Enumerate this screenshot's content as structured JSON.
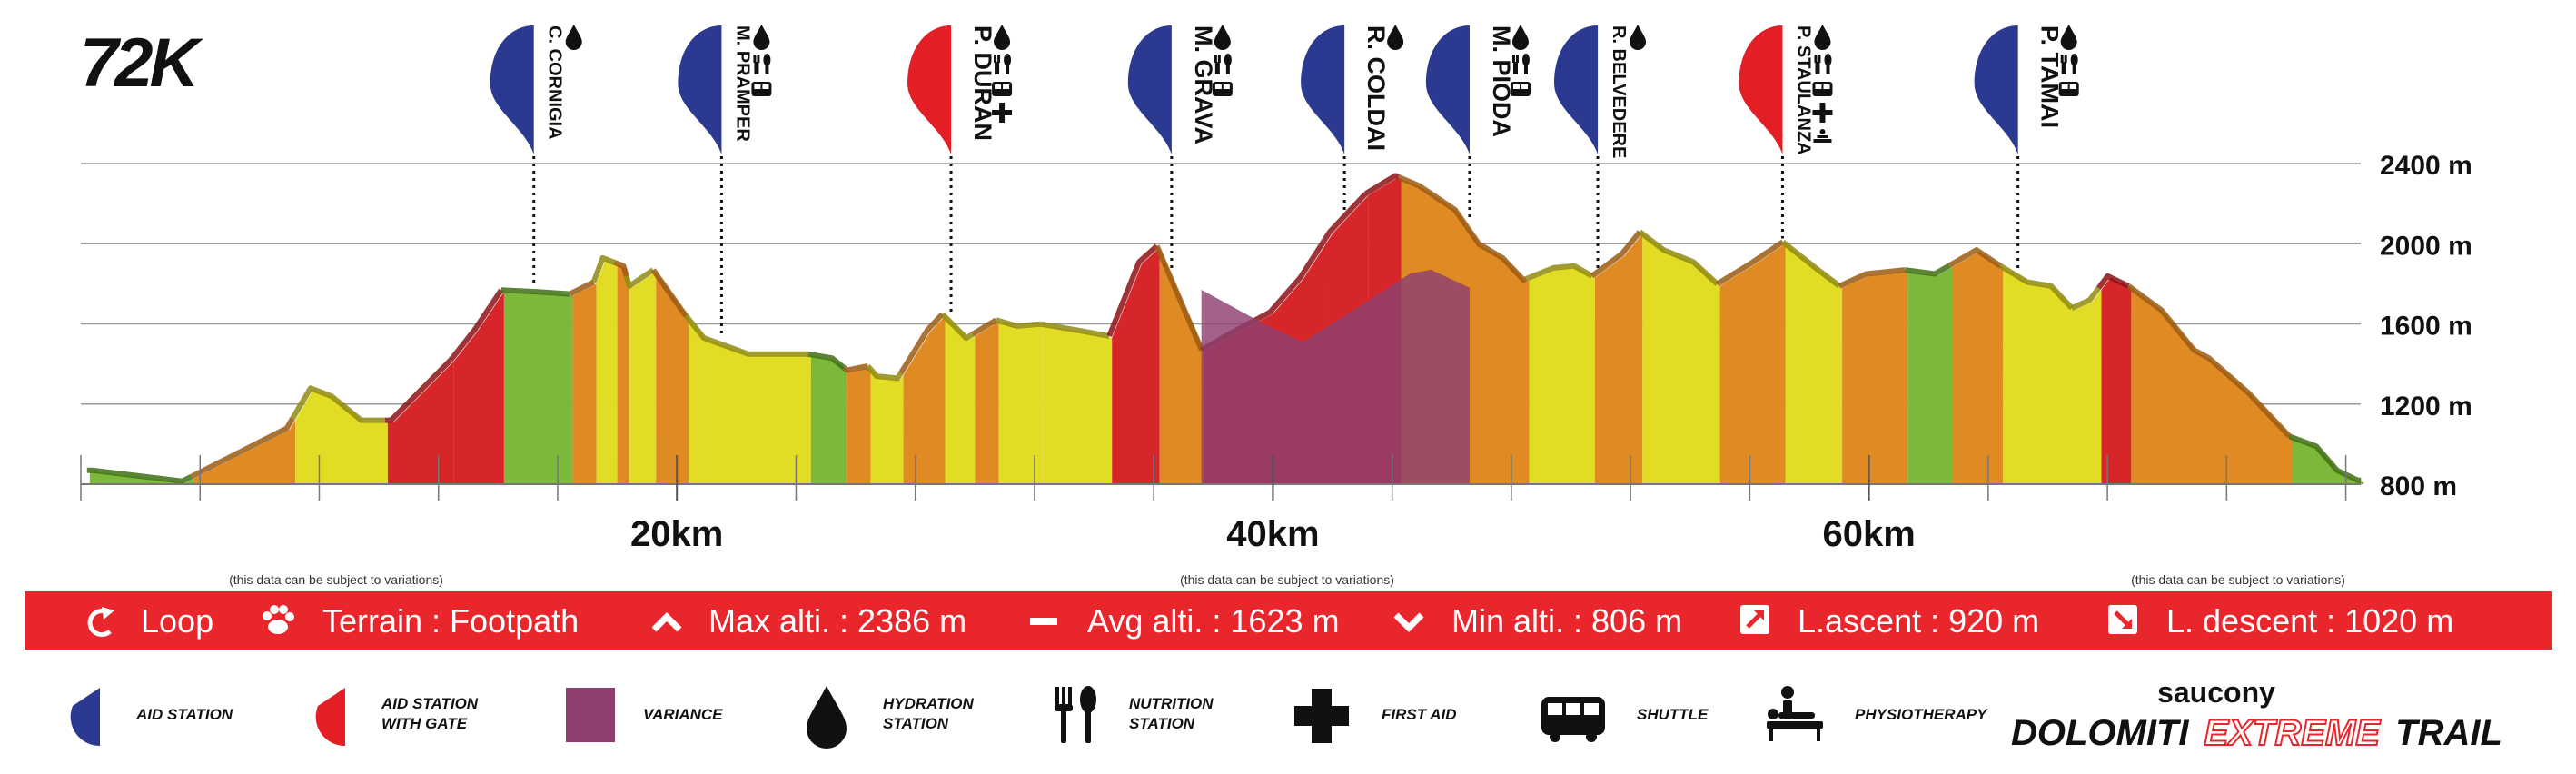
{
  "title": "72K",
  "brand": {
    "top": "saucony",
    "name_left": "DOLOMITI",
    "name_mid": "EXTREME",
    "name_right": "TRAIL"
  },
  "colors": {
    "aid_station": "#2b3990",
    "aid_gate": "#e31e24",
    "variance": "#8e3f6f",
    "banner": "#e8262c",
    "red": "#d7262a",
    "orange": "#e08a24",
    "yellow": "#e3dc24",
    "green": "#7cb83a"
  },
  "disclaimer": "(this data can be subject to variations)",
  "stats": {
    "loop": "Loop",
    "terrain": "Terrain : Footpath",
    "max_alt": "Max alti. : 2386 m",
    "avg_alt": "Avg alti. : 1623 m",
    "min_alt": "Min alti. : 806 m",
    "ascent": "L.ascent : 920 m",
    "descent": "L.  descent : 1020 m"
  },
  "legend": {
    "aid_station": "AID STATION",
    "aid_gate": "AID STATION WITH GATE",
    "variance": "VARIANCE",
    "hydration": "HYDRATION STATION",
    "nutrition": "NUTRITION STATION",
    "first_aid": "FIRST AID",
    "shuttle": "SHUTTLE",
    "physio": "PHYSIOTHERAPY"
  },
  "chart_data": {
    "type": "area",
    "title": "72K",
    "x_unit": "km",
    "y_unit": "m",
    "xlim": [
      0,
      76.5
    ],
    "ylim": [
      800,
      2400
    ],
    "y_ticks": [
      800,
      1200,
      1600,
      2000,
      2400
    ],
    "y_tick_labels": [
      "800 m",
      "1200 m",
      "1600 m",
      "2000 m",
      "2400 m"
    ],
    "x_ticks": [
      20,
      40,
      60
    ],
    "x_tick_labels": [
      "20km",
      "40km",
      "60km"
    ],
    "profile": [
      [
        0.5,
        860
      ],
      [
        3.5,
        806
      ],
      [
        7.0,
        1070
      ],
      [
        7.8,
        1270
      ],
      [
        8.5,
        1230
      ],
      [
        9.5,
        1110
      ],
      [
        10.5,
        1110
      ],
      [
        11.5,
        1260
      ],
      [
        12.5,
        1410
      ],
      [
        13.3,
        1560
      ],
      [
        14.2,
        1760
      ],
      [
        15.5,
        1750
      ],
      [
        16.5,
        1740
      ],
      [
        17.3,
        1800
      ],
      [
        17.6,
        1920
      ],
      [
        18.3,
        1880
      ],
      [
        18.5,
        1780
      ],
      [
        19.3,
        1860
      ],
      [
        20.3,
        1650
      ],
      [
        21.0,
        1520
      ],
      [
        22.5,
        1440
      ],
      [
        23.8,
        1440
      ],
      [
        24.5,
        1440
      ],
      [
        25.3,
        1420
      ],
      [
        25.8,
        1360
      ],
      [
        26.5,
        1380
      ],
      [
        26.8,
        1330
      ],
      [
        27.5,
        1320
      ],
      [
        28.5,
        1560
      ],
      [
        29.0,
        1640
      ],
      [
        29.8,
        1520
      ],
      [
        30.8,
        1610
      ],
      [
        31.5,
        1580
      ],
      [
        32.3,
        1590
      ],
      [
        33.5,
        1560
      ],
      [
        34.6,
        1530
      ],
      [
        35.6,
        1900
      ],
      [
        36.2,
        1980
      ],
      [
        37.7,
        1460
      ],
      [
        38.5,
        1530
      ],
      [
        40.0,
        1650
      ],
      [
        41.0,
        1820
      ],
      [
        42.0,
        2050
      ],
      [
        43.2,
        2240
      ],
      [
        44.2,
        2330
      ],
      [
        45.0,
        2280
      ],
      [
        46.2,
        2160
      ],
      [
        47.0,
        1990
      ],
      [
        47.8,
        1920
      ],
      [
        48.5,
        1810
      ],
      [
        49.5,
        1870
      ],
      [
        50.2,
        1880
      ],
      [
        50.8,
        1830
      ],
      [
        51.8,
        1940
      ],
      [
        52.4,
        2050
      ],
      [
        53.2,
        1960
      ],
      [
        54.2,
        1900
      ],
      [
        55.0,
        1790
      ],
      [
        56.1,
        1890
      ],
      [
        57.2,
        2000
      ],
      [
        58.3,
        1870
      ],
      [
        59.1,
        1780
      ],
      [
        60.0,
        1840
      ],
      [
        61.3,
        1860
      ],
      [
        62.3,
        1840
      ],
      [
        63.0,
        1900
      ],
      [
        63.7,
        1960
      ],
      [
        64.5,
        1880
      ],
      [
        65.4,
        1800
      ],
      [
        66.2,
        1780
      ],
      [
        66.9,
        1670
      ],
      [
        67.5,
        1710
      ],
      [
        68.1,
        1830
      ],
      [
        68.8,
        1780
      ],
      [
        69.9,
        1660
      ],
      [
        71.0,
        1460
      ],
      [
        71.5,
        1420
      ],
      [
        72.8,
        1250
      ],
      [
        74.2,
        1030
      ],
      [
        75.1,
        980
      ],
      [
        75.8,
        860
      ],
      [
        76.5,
        810
      ]
    ],
    "variance_profile": [
      [
        37.6,
        1770
      ],
      [
        39.7,
        1600
      ],
      [
        41.0,
        1510
      ],
      [
        42.4,
        1640
      ],
      [
        44.6,
        1850
      ],
      [
        45.3,
        1870
      ],
      [
        46.6,
        1780
      ]
    ],
    "segments": [
      {
        "from": 0.3,
        "to": 3.8,
        "color": "green"
      },
      {
        "from": 3.8,
        "to": 7.2,
        "color": "orange"
      },
      {
        "from": 7.2,
        "to": 10.3,
        "color": "yellow"
      },
      {
        "from": 10.3,
        "to": 12.5,
        "color": "red"
      },
      {
        "from": 12.5,
        "to": 14.2,
        "color": "red"
      },
      {
        "from": 14.2,
        "to": 16.5,
        "color": "green"
      },
      {
        "from": 16.5,
        "to": 17.3,
        "color": "orange"
      },
      {
        "from": 17.3,
        "to": 18.0,
        "color": "yellow"
      },
      {
        "from": 18.0,
        "to": 18.4,
        "color": "orange"
      },
      {
        "from": 18.4,
        "to": 19.3,
        "color": "yellow"
      },
      {
        "from": 19.3,
        "to": 20.4,
        "color": "orange"
      },
      {
        "from": 20.4,
        "to": 22.6,
        "color": "yellow"
      },
      {
        "from": 22.6,
        "to": 24.5,
        "color": "yellow"
      },
      {
        "from": 24.5,
        "to": 25.7,
        "color": "green"
      },
      {
        "from": 25.7,
        "to": 26.5,
        "color": "orange"
      },
      {
        "from": 26.5,
        "to": 27.6,
        "color": "yellow"
      },
      {
        "from": 27.6,
        "to": 29.0,
        "color": "orange"
      },
      {
        "from": 29.0,
        "to": 30.0,
        "color": "yellow"
      },
      {
        "from": 30.0,
        "to": 30.8,
        "color": "orange"
      },
      {
        "from": 30.8,
        "to": 32.3,
        "color": "yellow"
      },
      {
        "from": 32.3,
        "to": 34.6,
        "color": "yellow"
      },
      {
        "from": 34.6,
        "to": 36.2,
        "color": "red"
      },
      {
        "from": 36.2,
        "to": 37.7,
        "color": "orange"
      },
      {
        "from": 37.7,
        "to": 41.8,
        "color": "red"
      },
      {
        "from": 41.8,
        "to": 43.2,
        "color": "red"
      },
      {
        "from": 43.2,
        "to": 44.3,
        "color": "red"
      },
      {
        "from": 44.3,
        "to": 46.6,
        "color": "orange"
      },
      {
        "from": 46.6,
        "to": 48.6,
        "color": "orange"
      },
      {
        "from": 48.6,
        "to": 50.8,
        "color": "yellow"
      },
      {
        "from": 50.8,
        "to": 52.4,
        "color": "orange"
      },
      {
        "from": 52.4,
        "to": 55.0,
        "color": "yellow"
      },
      {
        "from": 55.0,
        "to": 57.2,
        "color": "orange"
      },
      {
        "from": 57.2,
        "to": 59.1,
        "color": "yellow"
      },
      {
        "from": 59.1,
        "to": 61.3,
        "color": "orange"
      },
      {
        "from": 61.3,
        "to": 62.8,
        "color": "green"
      },
      {
        "from": 62.8,
        "to": 64.5,
        "color": "orange"
      },
      {
        "from": 64.5,
        "to": 66.9,
        "color": "yellow"
      },
      {
        "from": 66.9,
        "to": 67.8,
        "color": "yellow"
      },
      {
        "from": 67.8,
        "to": 68.8,
        "color": "red"
      },
      {
        "from": 68.8,
        "to": 74.2,
        "color": "orange"
      },
      {
        "from": 74.2,
        "to": 76.6,
        "color": "green"
      }
    ],
    "stations": [
      {
        "name": "C. CORNIGIA",
        "km": 15.2,
        "gate": false,
        "services": [
          "water"
        ]
      },
      {
        "name": "M. PRAMPER",
        "km": 21.5,
        "gate": false,
        "services": [
          "water",
          "food",
          "bus"
        ]
      },
      {
        "name": "P. DURAN",
        "km": 29.2,
        "gate": true,
        "services": [
          "water",
          "food",
          "bus",
          "firstaid"
        ]
      },
      {
        "name": "M. GRAVA",
        "km": 36.6,
        "gate": false,
        "services": [
          "water",
          "food",
          "bus"
        ]
      },
      {
        "name": "R. COLDAI",
        "km": 42.4,
        "gate": false,
        "services": [
          "water"
        ]
      },
      {
        "name": "M. PIODA",
        "km": 46.6,
        "gate": false,
        "services": [
          "water",
          "food",
          "bus"
        ]
      },
      {
        "name": "R. BELVEDERE",
        "km": 50.9,
        "gate": false,
        "services": [
          "water"
        ]
      },
      {
        "name": "P. STAULANZA",
        "km": 57.1,
        "gate": true,
        "services": [
          "water",
          "food",
          "bus",
          "firstaid",
          "physio"
        ]
      },
      {
        "name": "P. TAMAI",
        "km": 65.0,
        "gate": false,
        "services": [
          "water",
          "food",
          "bus"
        ]
      }
    ],
    "legend_placement": "bottom",
    "grid": true
  }
}
